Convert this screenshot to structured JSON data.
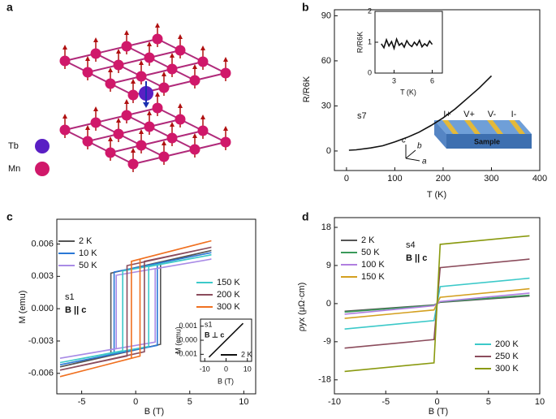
{
  "panels": [
    "a",
    "b",
    "c",
    "d"
  ],
  "structure": {
    "labels": [
      "Tb",
      "Mn"
    ]
  },
  "sample": {
    "contacts": [
      "I+",
      "V+",
      "V-",
      "I-"
    ],
    "label": "Sample",
    "axes": [
      "c",
      "b",
      "a"
    ]
  },
  "chart_data": [
    {
      "type": "line",
      "xlabel": "T (K)",
      "ylabel": "R/R6K",
      "annotations": [
        "s7"
      ],
      "xlim": [
        -25,
        400
      ],
      "xticks": [
        0,
        100,
        200,
        300,
        400
      ],
      "ylim": [
        -13,
        94
      ],
      "yticks": [
        0,
        30,
        60,
        90
      ],
      "series": [
        {
          "color": "#111111",
          "x": [
            5,
            20,
            50,
            75,
            100,
            125,
            150,
            175,
            200,
            225,
            250,
            275,
            300
          ],
          "values": [
            0.5,
            0.8,
            2,
            3.5,
            6,
            9,
            12.5,
            17,
            22,
            28,
            35,
            42,
            50
          ]
        }
      ]
    },
    {
      "type": "line",
      "xlabel": "T (K)",
      "ylabel": "R/R6K",
      "xlim": [
        1.5,
        6.8
      ],
      "xticks": [
        3,
        6
      ],
      "ylim": [
        0,
        2
      ],
      "yticks": [
        0,
        1,
        2
      ],
      "series": [
        {
          "color": "#111111",
          "x": [
            2,
            2.2,
            2.4,
            2.6,
            2.8,
            3,
            3.2,
            3.4,
            3.6,
            3.8,
            4,
            4.2,
            4.4,
            4.6,
            4.8,
            5,
            5.2,
            5.4,
            5.6,
            5.8,
            6
          ],
          "values": [
            0.95,
            0.82,
            1.08,
            0.88,
            1.02,
            0.8,
            1.1,
            0.9,
            0.97,
            0.84,
            1.05,
            0.92,
            0.86,
            1.0,
            0.9,
            1.06,
            0.85,
            0.95,
            0.88,
            1.04,
            0.93
          ]
        }
      ]
    },
    {
      "type": "line",
      "xlabel": "B (T)",
      "ylabel": "M (emu)",
      "annotations": [
        "s1",
        "B || c"
      ],
      "xlim": [
        -7.3,
        11.1
      ],
      "xticks": [
        -5,
        0,
        5,
        10
      ],
      "ylim": [
        -0.0079,
        0.0083
      ],
      "yticks": [
        -0.006,
        -0.003,
        {
          "value": 0,
          "label": "0.000"
        },
        0.003,
        0.006
      ],
      "series": [
        {
          "name": "2 K",
          "color": "#555555",
          "x": [
            7,
            -2.3,
            -2.3,
            -7,
            2.3,
            2.3,
            7
          ],
          "values": [
            0.0054,
            0.0033,
            -0.0043,
            -0.0054,
            -0.0033,
            0.0043,
            0.0054
          ]
        },
        {
          "name": "10 K",
          "color": "#2a78d6",
          "x": [
            7,
            -2.0,
            -2.0,
            -7,
            2.0,
            2.0,
            7
          ],
          "values": [
            0.0052,
            0.0034,
            -0.0042,
            -0.0052,
            -0.0034,
            0.0042,
            0.0052
          ]
        },
        {
          "name": "50 K",
          "color": "#a98be6",
          "x": [
            7,
            -1.8,
            -1.8,
            -7,
            1.8,
            1.8,
            7
          ],
          "values": [
            0.0046,
            0.0031,
            -0.0037,
            -0.0046,
            -0.0031,
            0.0037,
            0.0046
          ]
        },
        {
          "name": "150 K",
          "color": "#3cc9c9",
          "x": [
            7,
            -1.2,
            -1.2,
            -7,
            1.2,
            1.2,
            7
          ],
          "values": [
            0.005,
            0.0035,
            -0.0039,
            -0.005,
            -0.0035,
            0.0039,
            0.005
          ]
        },
        {
          "name": "200 K",
          "color": "#8b4c5c",
          "x": [
            7,
            -0.8,
            -0.8,
            -7,
            0.8,
            0.8,
            7
          ],
          "values": [
            0.0057,
            0.004,
            -0.0044,
            -0.0057,
            -0.004,
            0.0044,
            0.0057
          ]
        },
        {
          "name": "300 K",
          "color": "#f07020",
          "x": [
            7,
            -0.4,
            -0.4,
            -7,
            0.4,
            0.4,
            7
          ],
          "values": [
            0.0063,
            0.0044,
            -0.0046,
            -0.0063,
            -0.0044,
            0.0046,
            0.0063
          ]
        }
      ]
    },
    {
      "type": "line",
      "xlabel": "B (T)",
      "ylabel": "M (emu)",
      "annotations": [
        "s1",
        "B ⊥ c"
      ],
      "xlim": [
        -12,
        12
      ],
      "xticks": [
        -10,
        0,
        10
      ],
      "ylim": [
        -0.0015,
        0.0015
      ],
      "yticks": [
        -0.001,
        {
          "value": 0,
          "label": "0.000"
        },
        0.001
      ],
      "series": [
        {
          "name": "2 K",
          "color": "#111111",
          "x": [
            -8,
            8
          ],
          "values": [
            -0.0012,
            0.0012
          ]
        }
      ]
    },
    {
      "type": "line",
      "xlabel": "B (T)",
      "ylabel": "ρyx (μΩ·cm)",
      "annotations": [
        "s4",
        "B || c"
      ],
      "xlim": [
        -10,
        10
      ],
      "xticks": [
        -10,
        -5,
        0,
        5,
        10
      ],
      "ylim": [
        -21.3,
        20.3
      ],
      "yticks": [
        -18,
        -9,
        0,
        9,
        18
      ],
      "series": [
        {
          "name": "2 K",
          "color": "#555555",
          "x": [
            -9,
            -0.3,
            0.3,
            9
          ],
          "values": [
            -1.8,
            -0.3,
            0.3,
            1.8
          ]
        },
        {
          "name": "50 K",
          "color": "#3a9a5a",
          "x": [
            -9,
            -0.3,
            0.3,
            9
          ],
          "values": [
            -2.0,
            -0.4,
            0.4,
            2.0
          ]
        },
        {
          "name": "100 K",
          "color": "#b07fe0",
          "x": [
            -9,
            -0.3,
            0.3,
            9
          ],
          "values": [
            -2.5,
            -0.5,
            0.5,
            2.5
          ]
        },
        {
          "name": "150 K",
          "color": "#d4a020",
          "x": [
            -9,
            -0.3,
            0.3,
            9
          ],
          "values": [
            -3.5,
            -1.5,
            1.5,
            3.5
          ]
        },
        {
          "name": "200 K",
          "color": "#3cc9c9",
          "x": [
            -9,
            -0.3,
            0.3,
            9
          ],
          "values": [
            -6,
            -4,
            4,
            6
          ]
        },
        {
          "name": "250 K",
          "color": "#8b4c5c",
          "x": [
            -9,
            -0.3,
            0.3,
            9
          ],
          "values": [
            -10.5,
            -8.5,
            8.5,
            10.5
          ]
        },
        {
          "name": "300 K",
          "color": "#8a9a10",
          "x": [
            -9,
            -0.3,
            0.3,
            9
          ],
          "values": [
            -16,
            -14,
            14,
            16
          ]
        }
      ]
    }
  ]
}
